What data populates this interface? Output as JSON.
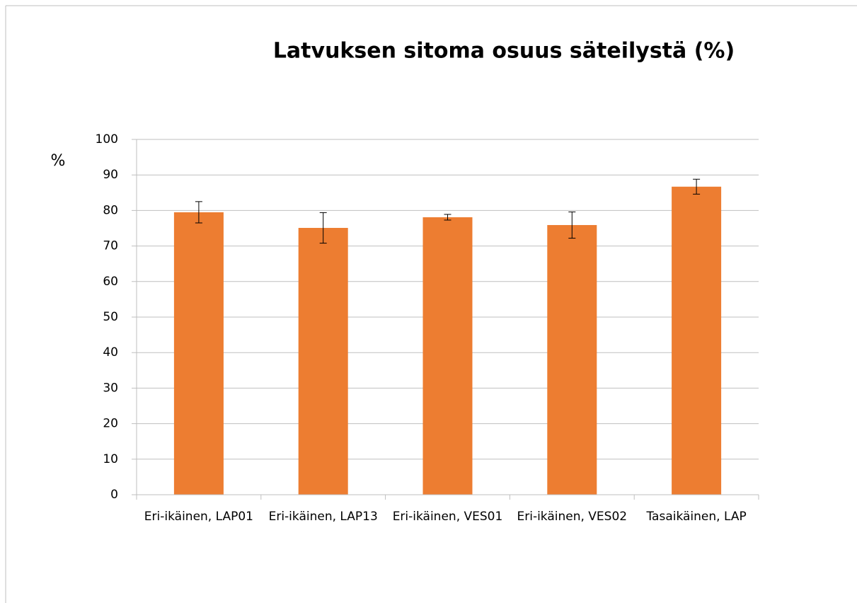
{
  "chart_data": {
    "type": "bar",
    "title": "Latvuksen sitoma osuus säteilystä (%)",
    "y_label": "%",
    "categories": [
      "Eri-ikäinen, LAP01",
      "Eri-ikäinen, LAP13",
      "Eri-ikäinen, VES01",
      "Eri-ikäinen, VES02",
      "Tasaikäinen, LAP"
    ],
    "values": [
      79.5,
      75.1,
      78.1,
      75.9,
      86.7
    ],
    "errors": [
      3.0,
      4.3,
      0.8,
      3.7,
      2.1
    ],
    "color": "#ed7d31",
    "ylim": [
      0,
      100
    ],
    "yticks": [
      0,
      10,
      20,
      30,
      40,
      50,
      60,
      70,
      80,
      90,
      100
    ],
    "grid": true
  }
}
